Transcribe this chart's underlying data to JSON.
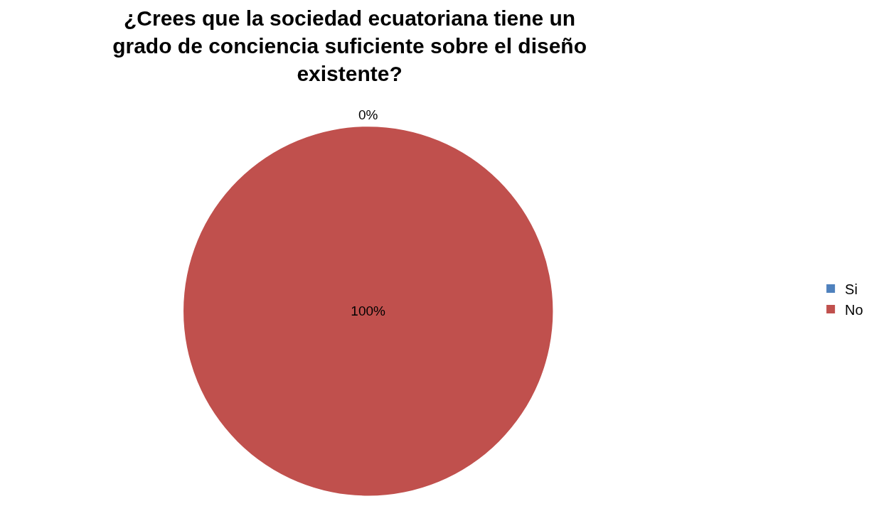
{
  "chart_data": {
    "type": "pie",
    "title": "¿Crees que la sociedad ecuatoriana tiene un grado de conciencia suficiente sobre el diseño existente?",
    "categories": [
      "Si",
      "No"
    ],
    "values": [
      0,
      100
    ],
    "colors": [
      "#4f81bd",
      "#c0504d"
    ],
    "value_labels": [
      "0%",
      "100%"
    ],
    "legend": "right"
  }
}
